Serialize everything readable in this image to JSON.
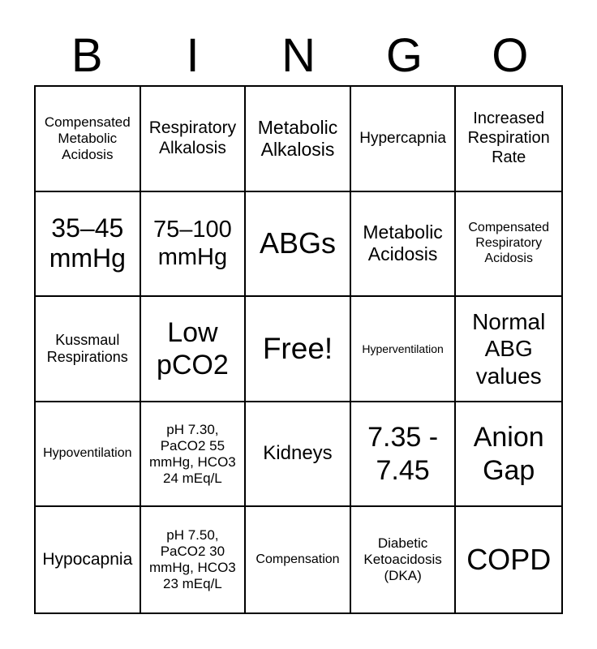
{
  "title": {
    "letters": [
      "B",
      "I",
      "N",
      "G",
      "O"
    ]
  },
  "grid": {
    "cells": [
      "Compensated Metabolic Acidosis",
      "Respiratory Alkalosis",
      "Metabolic Alkalosis",
      "Hypercapnia",
      "Increased Respiration Rate",
      "35–45 mmHg",
      "75–100 mmHg",
      "ABGs",
      "Metabolic Acidosis",
      "Compensated Respiratory Acidosis",
      "Kussmaul Respirations",
      "Low pCO2",
      "Free!",
      "Hyperventilation",
      "Normal ABG values",
      "Hypoventilation",
      "pH 7.30, PaCO2 55 mmHg, HCO3 24 mEq/L",
      "Kidneys",
      "7.35 - 7.45",
      "Anion Gap",
      "Hypocapnia",
      "pH 7.50, PaCO2 30 mmHg, HCO3 23 mEq/L",
      "Compensation",
      "Diabetic Ketoacidosis (DKA)",
      "COPD"
    ]
  },
  "colors": {
    "background": "#ffffff",
    "foreground": "#000000",
    "grid_line": "#000000"
  }
}
